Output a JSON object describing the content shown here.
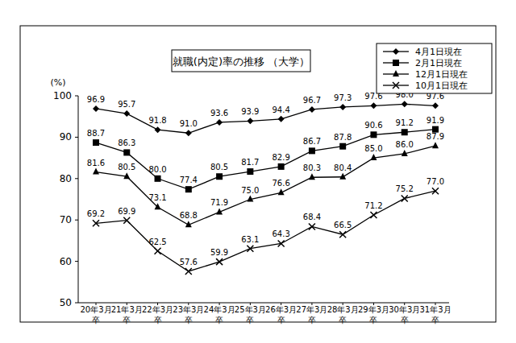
{
  "chart_data": {
    "type": "line",
    "title": "就職(内定)率の推移 （大学）",
    "y_label": "(%)",
    "categories": [
      "20年3月卒",
      "21年3月卒",
      "22年3月卒",
      "23年3月卒",
      "24年3月卒",
      "25年3月卒",
      "26年3月卒",
      "27年3月卒",
      "28年3月卒",
      "29年3月卒",
      "30年3月卒",
      "31年3月卒"
    ],
    "ylim": [
      50,
      100
    ],
    "yticks": [
      50,
      60,
      70,
      80,
      90,
      100
    ],
    "grid": false,
    "legend": "top-right",
    "data_labels": true,
    "series": [
      {
        "name": "4月1日現在",
        "color": "#000000",
        "marker": "diamond",
        "line_style": "solid",
        "values": [
          96.9,
          95.7,
          91.8,
          91.0,
          93.6,
          93.9,
          94.4,
          96.7,
          97.3,
          97.6,
          98.0,
          97.6
        ],
        "value_labels": [
          "96.9",
          "95.7",
          "91.8",
          "91.0",
          "93.6",
          "93.9",
          "94.4",
          "96.7",
          "97.3",
          "97.6",
          "98.0",
          "97.6"
        ]
      },
      {
        "name": "2月1日現在",
        "color": "#000000",
        "marker": "square",
        "line_style": "solid",
        "values": [
          88.7,
          86.3,
          80.0,
          77.4,
          80.5,
          81.7,
          82.9,
          86.7,
          87.8,
          90.6,
          91.2,
          91.9
        ],
        "value_labels": [
          "88.7",
          "86.3",
          "80.0",
          "77.4",
          "80.5",
          "81.7",
          "82.9",
          "86.7",
          "87.8",
          "90.6",
          "91.2",
          "91.9"
        ]
      },
      {
        "name": "12月1日現在",
        "color": "#000000",
        "marker": "triangle",
        "line_style": "solid",
        "values": [
          81.6,
          80.5,
          73.1,
          68.8,
          71.9,
          75.0,
          76.6,
          80.3,
          80.4,
          85.0,
          86.0,
          87.9
        ],
        "value_labels": [
          "81.6",
          "80.5",
          "73.1",
          "68.8",
          "71.9",
          "75.0",
          "76.6",
          "80.3",
          "80.4",
          "85.0",
          "86.0",
          "87.9"
        ]
      },
      {
        "name": "10月1日現在",
        "color": "#000000",
        "marker": "x",
        "line_style": "solid",
        "values": [
          69.2,
          69.9,
          62.5,
          57.6,
          59.9,
          63.1,
          64.3,
          68.4,
          66.5,
          71.2,
          75.2,
          77.0
        ],
        "value_labels": [
          "69.2",
          "69.9",
          "62.5",
          "57.6",
          "59.9",
          "63.1",
          "64.3",
          "68.4",
          "66.5",
          "71.2",
          "75.2",
          "77.0"
        ]
      }
    ]
  }
}
